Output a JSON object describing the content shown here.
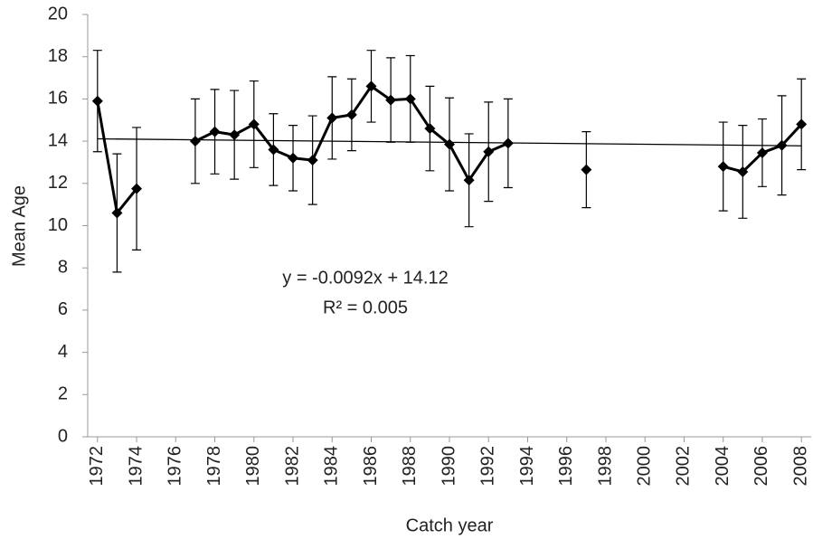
{
  "chart_data": {
    "type": "line",
    "x_label": "Catch year",
    "y_label": "Mean Age",
    "x": [
      1972,
      1973,
      1974,
      1975,
      1976,
      1977,
      1978,
      1979,
      1980,
      1981,
      1982,
      1983,
      1984,
      1985,
      1986,
      1987,
      1988,
      1989,
      1990,
      1991,
      1992,
      1993,
      1994,
      1995,
      1996,
      1997,
      1998,
      1999,
      2000,
      2001,
      2002,
      2003,
      2004,
      2005,
      2006,
      2007,
      2008
    ],
    "values": [
      15.9,
      10.6,
      11.75,
      null,
      null,
      14.0,
      14.45,
      14.3,
      14.8,
      13.6,
      13.2,
      13.1,
      15.1,
      15.25,
      16.6,
      15.95,
      16.0,
      14.6,
      13.85,
      12.15,
      13.5,
      13.9,
      null,
      null,
      null,
      12.65,
      null,
      null,
      null,
      null,
      null,
      null,
      12.8,
      12.55,
      13.45,
      13.8,
      14.8
    ],
    "errors": [
      2.4,
      2.8,
      2.9,
      null,
      null,
      2.0,
      2.0,
      2.1,
      2.05,
      1.7,
      1.55,
      2.1,
      1.95,
      1.7,
      1.7,
      2.0,
      2.05,
      2.0,
      2.2,
      2.2,
      2.35,
      2.1,
      null,
      null,
      null,
      1.8,
      null,
      null,
      null,
      null,
      null,
      null,
      2.1,
      2.2,
      1.6,
      2.35,
      2.15
    ],
    "color": "#000000",
    "xlim": [
      1971.5,
      2008.5
    ],
    "xticks": [
      1972,
      1974,
      1976,
      1978,
      1980,
      1982,
      1984,
      1986,
      1988,
      1990,
      1992,
      1994,
      1996,
      1998,
      2000,
      2002,
      2004,
      2006,
      2008
    ],
    "ylim": [
      0,
      20
    ],
    "yticks": [
      0,
      2,
      4,
      6,
      8,
      10,
      12,
      14,
      16,
      18,
      20
    ],
    "trendline": {
      "equation": "y = -0.0092x + 14.12",
      "r2_label": "R² = 0.005",
      "slope": -0.0092,
      "intercept": 14.12
    }
  }
}
